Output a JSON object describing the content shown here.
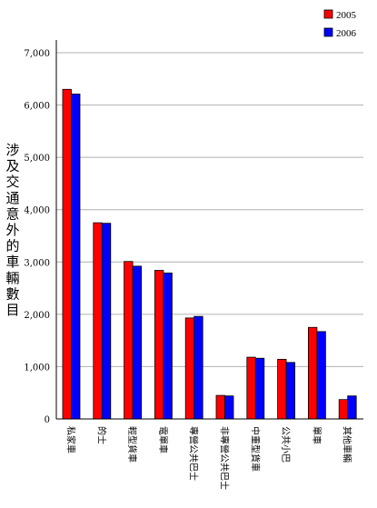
{
  "chart_data": {
    "type": "bar",
    "title": "",
    "xlabel": "",
    "ylabel": "涉及交通意外的車輛數目",
    "categories": [
      "私家車",
      "的士",
      "輕型貨車",
      "電單車",
      "專營公共巴士",
      "非專營公共巴士",
      "中重型貨車",
      "公共小巴",
      "單車",
      "其他車輛"
    ],
    "series": [
      {
        "name": "2005",
        "color": "#ff0000",
        "values": [
          6300,
          3750,
          3010,
          2840,
          1930,
          450,
          1180,
          1140,
          1750,
          370
        ]
      },
      {
        "name": "2006",
        "color": "#0000ff",
        "values": [
          6210,
          3740,
          2920,
          2790,
          1960,
          440,
          1160,
          1080,
          1670,
          440
        ]
      }
    ],
    "ylim": [
      0,
      7000
    ],
    "yticks": [
      "0",
      "1,000",
      "2,000",
      "3,000",
      "4,000",
      "5,000",
      "6,000",
      "7,000"
    ],
    "grid": true,
    "legend_position": "top-right"
  }
}
